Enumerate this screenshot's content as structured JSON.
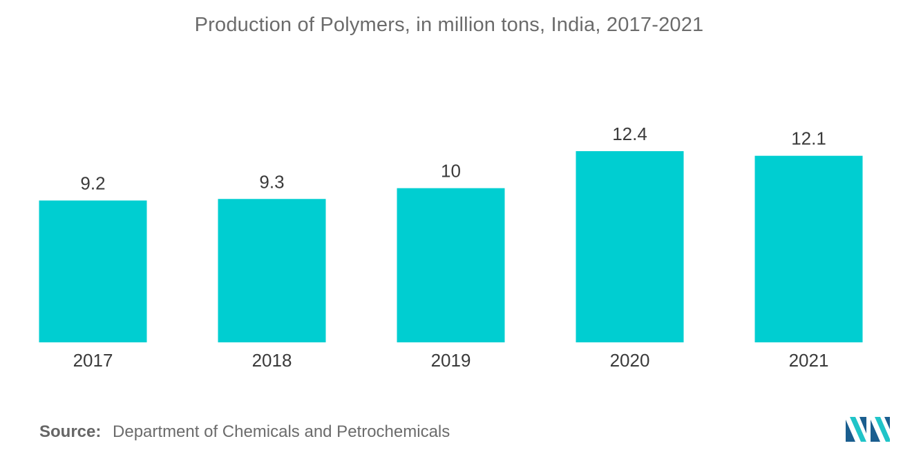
{
  "chart_data": {
    "type": "bar",
    "title": "Production of Polymers, in million tons, India, 2017-2021",
    "categories": [
      "2017",
      "2018",
      "2019",
      "2020",
      "2021"
    ],
    "values": [
      9.2,
      9.3,
      10,
      12.4,
      12.1
    ],
    "value_labels": [
      "9.2",
      "9.3",
      "10",
      "12.4",
      "12.1"
    ],
    "xlabel": "",
    "ylabel": "",
    "ylim": [
      0,
      12.4
    ],
    "grid": false,
    "legend": "none",
    "bar_color": "#00CED1"
  },
  "source": {
    "label": "Source:",
    "text": "Department of Chemicals and Petrochemicals"
  },
  "logo": {
    "icon": "mordor-intelligence-logo-icon",
    "colors": [
      "#1a5e8f",
      "#20c4c8"
    ]
  }
}
